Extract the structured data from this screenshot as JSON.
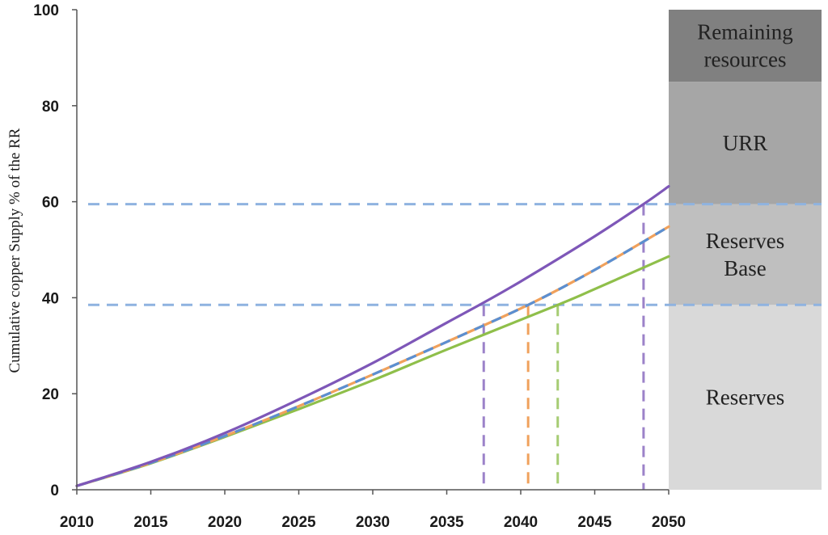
{
  "chart_data": {
    "type": "line",
    "ylabel": "Cumulative copper Supply % of the RR",
    "xlim": [
      2010,
      2050
    ],
    "ylim": [
      0,
      100
    ],
    "xticks": [
      "2010",
      "2015",
      "2020",
      "2025",
      "2030",
      "2035",
      "2040",
      "2045",
      "2050"
    ],
    "yticks": [
      "0",
      "20",
      "40",
      "60",
      "80",
      "100"
    ],
    "grid": false,
    "legend": "none",
    "bands": [
      {
        "label": "Reserves",
        "from": 0,
        "to": 38.5,
        "color": "#d9d9d9"
      },
      {
        "label": "Reserves\nBase",
        "from": 38.5,
        "to": 59.5,
        "color": "#bfbfbf"
      },
      {
        "label": "URR",
        "from": 59.5,
        "to": 85,
        "color": "#a6a6a6"
      },
      {
        "label": "Remaining\nresources",
        "from": 85,
        "to": 100,
        "color": "#808080"
      }
    ],
    "series": [
      {
        "color": "#7e57b8",
        "style": "solid",
        "x": [
          2010,
          2015,
          2020,
          2025,
          2030,
          2035,
          2037.5,
          2040,
          2045,
          2048.3,
          2050
        ],
        "y": [
          0.8,
          5.8,
          11.8,
          18.8,
          26.4,
          34.8,
          39.0,
          43.4,
          52.8,
          59.5,
          63.2
        ]
      },
      {
        "color": "#f0a15c",
        "style": "solid",
        "x": [
          2010,
          2015,
          2020,
          2025,
          2030,
          2035,
          2040.5,
          2045,
          2050
        ],
        "y": [
          0.8,
          5.6,
          11.2,
          17.4,
          24.0,
          30.8,
          38.5,
          45.8,
          54.8
        ]
      },
      {
        "color": "#5b8fd1",
        "style": "dashed",
        "x": [
          2010,
          2015,
          2020,
          2025,
          2030,
          2035,
          2040.5,
          2045,
          2050
        ],
        "y": [
          0.8,
          5.6,
          11.2,
          17.4,
          24.0,
          30.8,
          38.5,
          45.8,
          54.8
        ]
      },
      {
        "color": "#8fbf4a",
        "style": "solid",
        "x": [
          2010,
          2015,
          2020,
          2025,
          2030,
          2035,
          2042.5,
          2045,
          2050
        ],
        "y": [
          0.8,
          5.5,
          11.0,
          16.8,
          22.8,
          29.2,
          38.5,
          41.8,
          48.6
        ]
      }
    ],
    "reference_lines": {
      "horizontal": [
        {
          "y": 38.5,
          "color": "#8fb3e0"
        },
        {
          "y": 59.5,
          "color": "#8fb3e0"
        }
      ],
      "vertical": [
        {
          "x": 2037.5,
          "color": "#9c82c9"
        },
        {
          "x": 2040.5,
          "color": "#f0a15c"
        },
        {
          "x": 2042.5,
          "color": "#a6cc73"
        },
        {
          "x": 2048.3,
          "color": "#9c82c9"
        }
      ]
    }
  }
}
